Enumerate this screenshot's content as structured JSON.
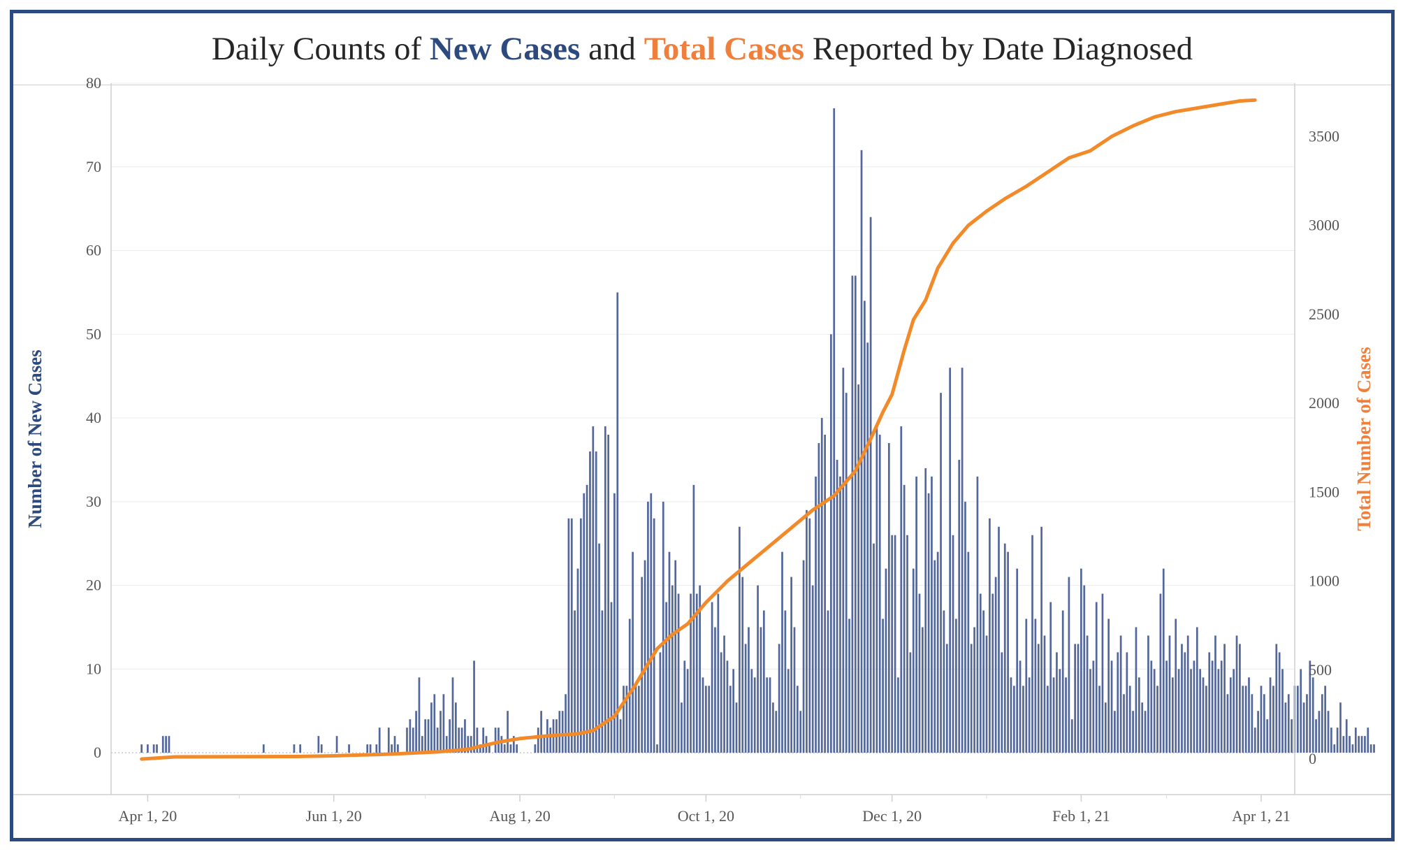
{
  "title": {
    "prefix": "Daily Counts of ",
    "blue": "New Cases",
    "middle": " and ",
    "orange": "Total Cases",
    "suffix": " Reported by Date Diagnosed"
  },
  "colors": {
    "bars": "#53679a",
    "line": "#f28a2a",
    "blue_text": "#2d4a7f",
    "orange_text": "#f07f3c",
    "frame": "#2b4a80"
  },
  "chart_data": {
    "type": "bar+line",
    "title": "Daily Counts of New Cases and Total Cases Reported by Date Diagnosed",
    "ylabel_left": "Number of New Cases",
    "ylabel_right": "Total Number of Cases",
    "ylim_left": [
      -5,
      80
    ],
    "ylim_right": [
      -200,
      3800
    ],
    "yticks_left": [
      0,
      10,
      20,
      30,
      40,
      50,
      60,
      70,
      80
    ],
    "yticks_right": [
      0,
      500,
      1000,
      1500,
      2000,
      2500,
      3000,
      3500
    ],
    "xtick_labels": [
      "Apr 1, 20",
      "Jun 1, 20",
      "Aug 1, 20",
      "Oct 1, 20",
      "Dec 1, 20",
      "Feb 1, 21",
      "Apr 1, 21"
    ],
    "xtick_dates": [
      "2020-04-01",
      "2020-06-01",
      "2020-08-01",
      "2020-10-01",
      "2020-12-01",
      "2021-02-01",
      "2021-04-01"
    ],
    "x_start": "2020-03-20",
    "x_end": "2021-04-12",
    "series": [
      {
        "name": "New Cases",
        "type": "bar",
        "start_date": "2020-03-30",
        "values": [
          1,
          0,
          1,
          0,
          1,
          1,
          0,
          2,
          2,
          2,
          0,
          0,
          0,
          0,
          0,
          0,
          0,
          0,
          0,
          0,
          0,
          0,
          0,
          0,
          0,
          0,
          0,
          0,
          0,
          0,
          0,
          0,
          0,
          0,
          0,
          0,
          0,
          0,
          0,
          0,
          1,
          0,
          0,
          0,
          0,
          0,
          0,
          0,
          0,
          0,
          1,
          0,
          1,
          0,
          0,
          0,
          0,
          0,
          2,
          1,
          0,
          0,
          0,
          0,
          2,
          0,
          0,
          0,
          1,
          0,
          0,
          0,
          0,
          0,
          1,
          1,
          0,
          1,
          3,
          0,
          0,
          3,
          1,
          2,
          1,
          0,
          0,
          3,
          4,
          3,
          5,
          9,
          2,
          4,
          4,
          6,
          7,
          3,
          5,
          7,
          2,
          4,
          9,
          6,
          3,
          3,
          4,
          2,
          2,
          11,
          3,
          1,
          3,
          2,
          1,
          0,
          3,
          3,
          2,
          1,
          5,
          1,
          2,
          1,
          0,
          0,
          0,
          0,
          0,
          1,
          3,
          5,
          2,
          4,
          3,
          4,
          4,
          5,
          5,
          7,
          28,
          28,
          17,
          22,
          28,
          31,
          32,
          36,
          39,
          36,
          25,
          17,
          39,
          38,
          18,
          31,
          55,
          4,
          8,
          8,
          16,
          24,
          8,
          8,
          21,
          23,
          30,
          31,
          28,
          1,
          12,
          30,
          18,
          24,
          20,
          23,
          19,
          6,
          11,
          10,
          19,
          32,
          19,
          20,
          9,
          8,
          8,
          18,
          15,
          19,
          12,
          14,
          11,
          8,
          10,
          6,
          27,
          21,
          13,
          15,
          10,
          9,
          20,
          15,
          17,
          9,
          9,
          6,
          5,
          13,
          24,
          17,
          10,
          21,
          15,
          8,
          5,
          23,
          29,
          28,
          20,
          33,
          37,
          40,
          38,
          17,
          50,
          77,
          35,
          33,
          46,
          43,
          16,
          57,
          57,
          44,
          72,
          54,
          49,
          64,
          25,
          39,
          38,
          16,
          22,
          37,
          26,
          26,
          9,
          39,
          32,
          26,
          12,
          22,
          33,
          19,
          15,
          34,
          31,
          33,
          23,
          24,
          43,
          17,
          13,
          46,
          26,
          16,
          35,
          46,
          30,
          24,
          13,
          15,
          33,
          19,
          17,
          14,
          28,
          19,
          21,
          27,
          12,
          25,
          24,
          9,
          8,
          22,
          11,
          8,
          16,
          9,
          26,
          16,
          13,
          27,
          14,
          8,
          18,
          9,
          12,
          10,
          17,
          9,
          21,
          4,
          13,
          13,
          22,
          20,
          14,
          10,
          11,
          18,
          8,
          19,
          6,
          16,
          11,
          5,
          12,
          14,
          7,
          12,
          8,
          5,
          15,
          9,
          6,
          5,
          14,
          11,
          10,
          8,
          19,
          22,
          11,
          14,
          9,
          16,
          10,
          13,
          12,
          14,
          10,
          11,
          15,
          10,
          9,
          8,
          12,
          11,
          14,
          10,
          11,
          13,
          7,
          9,
          10,
          14,
          13,
          8,
          8,
          9,
          7,
          3,
          5,
          8,
          7,
          4,
          9,
          8,
          13,
          12,
          10,
          6,
          7,
          4,
          8,
          8,
          10,
          6,
          7,
          11,
          9,
          4,
          5,
          7,
          8,
          5,
          3,
          1,
          3,
          6,
          2,
          4,
          2,
          1,
          3,
          2,
          2,
          2,
          3,
          1,
          1
        ]
      },
      {
        "name": "Total Cases",
        "type": "line",
        "points": [
          [
            "2020-03-30",
            0
          ],
          [
            "2020-04-10",
            12
          ],
          [
            "2020-05-20",
            14
          ],
          [
            "2020-06-01",
            18
          ],
          [
            "2020-06-20",
            28
          ],
          [
            "2020-07-05",
            40
          ],
          [
            "2020-07-15",
            55
          ],
          [
            "2020-07-25",
            95
          ],
          [
            "2020-08-01",
            115
          ],
          [
            "2020-08-10",
            130
          ],
          [
            "2020-08-20",
            142
          ],
          [
            "2020-08-25",
            160
          ],
          [
            "2020-09-01",
            240
          ],
          [
            "2020-09-08",
            420
          ],
          [
            "2020-09-15",
            620
          ],
          [
            "2020-09-20",
            700
          ],
          [
            "2020-09-25",
            760
          ],
          [
            "2020-10-01",
            880
          ],
          [
            "2020-10-08",
            1000
          ],
          [
            "2020-10-15",
            1100
          ],
          [
            "2020-10-22",
            1200
          ],
          [
            "2020-10-29",
            1300
          ],
          [
            "2020-11-05",
            1400
          ],
          [
            "2020-11-12",
            1480
          ],
          [
            "2020-11-19",
            1620
          ],
          [
            "2020-11-24",
            1800
          ],
          [
            "2020-11-28",
            1950
          ],
          [
            "2020-12-01",
            2050
          ],
          [
            "2020-12-05",
            2300
          ],
          [
            "2020-12-08",
            2470
          ],
          [
            "2020-12-12",
            2580
          ],
          [
            "2020-12-16",
            2760
          ],
          [
            "2020-12-21",
            2900
          ],
          [
            "2020-12-26",
            3000
          ],
          [
            "2021-01-01",
            3080
          ],
          [
            "2021-01-07",
            3150
          ],
          [
            "2021-01-14",
            3220
          ],
          [
            "2021-01-21",
            3300
          ],
          [
            "2021-01-28",
            3380
          ],
          [
            "2021-02-04",
            3420
          ],
          [
            "2021-02-11",
            3500
          ],
          [
            "2021-02-18",
            3560
          ],
          [
            "2021-02-25",
            3610
          ],
          [
            "2021-03-04",
            3640
          ],
          [
            "2021-03-11",
            3660
          ],
          [
            "2021-03-18",
            3680
          ],
          [
            "2021-03-25",
            3700
          ],
          [
            "2021-03-30",
            3705
          ]
        ]
      }
    ],
    "grid": true,
    "legend": "none"
  }
}
